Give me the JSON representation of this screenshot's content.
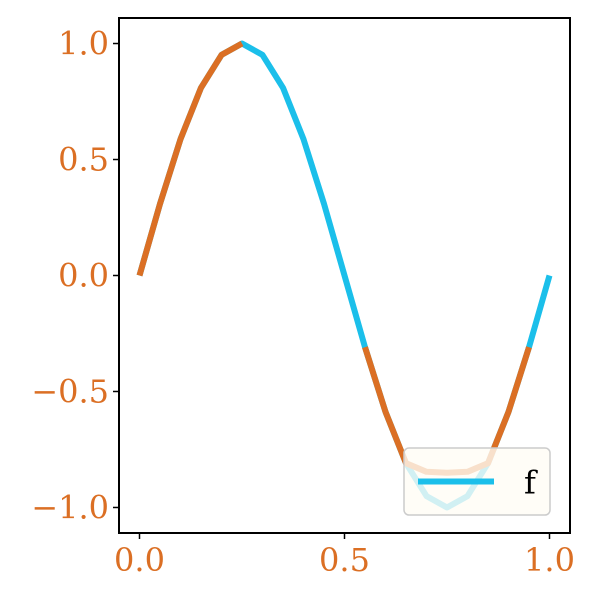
{
  "chart_data": {
    "type": "line",
    "title": "",
    "xlabel": "",
    "ylabel": "",
    "xlim": [
      -0.05,
      1.05
    ],
    "ylim": [
      -1.11,
      1.11
    ],
    "x_ticks": [
      0.0,
      0.5,
      1.0
    ],
    "x_tick_labels": [
      "0.0",
      "0.5",
      "1.0"
    ],
    "y_ticks": [
      1.0,
      0.5,
      0.0,
      -0.5,
      -1.0
    ],
    "y_tick_labels": [
      "1.0",
      "0.5",
      "0.0",
      "−0.5",
      "−1.0"
    ],
    "grid": false,
    "legend": {
      "placement": "lower-right",
      "entries": [
        "f"
      ]
    },
    "series": [
      {
        "name": "f",
        "function": "sin(2*pi*x)",
        "x": [
          0.0,
          0.05,
          0.1,
          0.15,
          0.2,
          0.25,
          0.3,
          0.35,
          0.4,
          0.45,
          0.5,
          0.55,
          0.6,
          0.65,
          0.7,
          0.75,
          0.8,
          0.85,
          0.9,
          0.95,
          1.0
        ],
        "y": [
          0.0,
          0.309,
          0.588,
          0.809,
          0.951,
          1.0,
          0.951,
          0.809,
          0.588,
          0.309,
          0.0,
          -0.309,
          -0.588,
          -0.809,
          -0.951,
          -1.0,
          -0.951,
          -0.809,
          -0.588,
          -0.309,
          0.0
        ]
      },
      {
        "x": [
          0.0,
          0.05,
          0.1,
          0.15,
          0.2,
          0.25,
          0.55,
          0.6,
          0.65,
          0.7,
          0.75,
          0.8,
          0.85,
          0.9,
          0.95
        ],
        "y": [
          0.0,
          0.309,
          0.588,
          0.809,
          0.951,
          1.0,
          -0.309,
          -0.588,
          -0.809,
          -0.846,
          -0.85,
          -0.846,
          -0.809,
          -0.588,
          -0.309
        ]
      }
    ]
  },
  "colors": {
    "series": [
      "#1bbfea",
      "#db6f24"
    ],
    "tick_label": "#db6f24",
    "axes": "#000000",
    "legend_face": "#fffdf5",
    "legend_edge": "#cccccc"
  }
}
